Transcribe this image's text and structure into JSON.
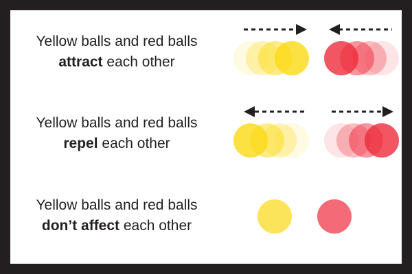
{
  "colors": {
    "frame": "#231f20",
    "background": "#ffffff",
    "text": "#231f20",
    "yellow": "#fbd914",
    "red": "#ee2c3c",
    "arrow": "#231f20"
  },
  "rows": [
    {
      "line1": "Yellow balls and red balls",
      "keyword": "attract",
      "rest": " each other",
      "interaction": "attract",
      "yellow_arrow": "right",
      "red_arrow": "left"
    },
    {
      "line1": "Yellow balls and red balls",
      "keyword": "repel",
      "rest": " each other",
      "interaction": "repel",
      "yellow_arrow": "left",
      "red_arrow": "right"
    },
    {
      "line1": "Yellow balls and red balls",
      "keyword": "don’t affect",
      "rest": " each other",
      "interaction": "none"
    }
  ]
}
